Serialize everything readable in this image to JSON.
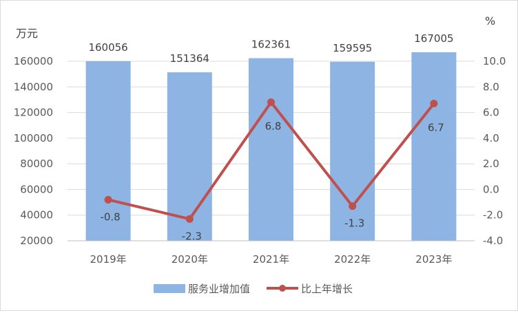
{
  "chart_data": {
    "type": "bar",
    "categories": [
      "2019年",
      "2020年",
      "2021年",
      "2022年",
      "2023年"
    ],
    "series": [
      {
        "name": "服务业增加值",
        "type": "bar",
        "axis": "left",
        "color": "#8EB4E3",
        "values": [
          160056,
          151364,
          162361,
          159595,
          167005
        ],
        "labels": [
          "160056",
          "151364",
          "162361",
          "159595",
          "167005"
        ]
      },
      {
        "name": "比上年增长",
        "type": "line",
        "axis": "right",
        "color": "#C0504D",
        "values": [
          -0.8,
          -2.3,
          6.8,
          -1.3,
          6.7
        ],
        "labels": [
          "-0.8",
          "-2.3",
          "6.8",
          "-1.3",
          "6.7"
        ]
      }
    ],
    "y_left": {
      "unit": "万元",
      "min": 20000,
      "max": 160000,
      "ticks": [
        "20000",
        "40000",
        "60000",
        "80000",
        "100000",
        "120000",
        "140000",
        "160000"
      ]
    },
    "y_right": {
      "unit": "%",
      "min": -4.0,
      "max": 10.0,
      "ticks": [
        "-4.0",
        "-2.0",
        "0.0",
        "2.0",
        "4.0",
        "6.0",
        "8.0",
        "10.0"
      ]
    },
    "grid": true,
    "legend_position": "bottom"
  }
}
